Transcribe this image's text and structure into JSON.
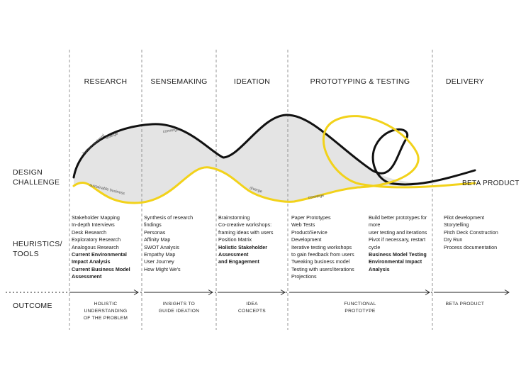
{
  "phases": [
    "RESEARCH",
    "SENSEMAKING",
    "IDEATION",
    "PROTOTYPING & TESTING",
    "DELIVERY"
  ],
  "row_labels": {
    "design_challenge": [
      "DESIGN",
      "CHALLENGE"
    ],
    "heuristics": [
      "HEURISTICS/",
      "TOOLS"
    ],
    "outcome": "OUTCOME"
  },
  "curve_labels": {
    "human_centered": "human-centered",
    "diverge_1": "diverge",
    "converge_1": "converge",
    "sustainable_business": "sustainable business",
    "diverge_2": "diverge",
    "converge_2": "converge"
  },
  "beta_product_label": "BETA PRODUCT",
  "tools": {
    "research": [
      {
        "text": "Stakeholder Mapping"
      },
      {
        "text": "In-depth Interviews"
      },
      {
        "text": "Desk Research"
      },
      {
        "text": "Exploratory Research"
      },
      {
        "text": "Analogous Research"
      },
      {
        "text": "Current Environmental",
        "bold": true
      },
      {
        "text": "Impact Analysis",
        "bold": true
      },
      {
        "text": "Current Business Model",
        "bold": true
      },
      {
        "text": "Assessment",
        "bold": true
      }
    ],
    "sensemaking": [
      {
        "text": "Synthesis of research"
      },
      {
        "text": "findings"
      },
      {
        "text": "Personas"
      },
      {
        "text": "Affinity Map"
      },
      {
        "text": "SWOT Analysis"
      },
      {
        "text": "Empathy Map"
      },
      {
        "text": "User Journey"
      },
      {
        "text": "How Might We's"
      }
    ],
    "ideation": [
      {
        "text": "Brainstorming"
      },
      {
        "text": "Co-creative workshops:"
      },
      {
        "text": "framing ideas with users"
      },
      {
        "text": "Position Matrix"
      },
      {
        "text": "Holistic Stakeholder",
        "bold": true
      },
      {
        "text": "Assessment",
        "bold": true
      },
      {
        "text": "and Engagement",
        "bold": true
      }
    ],
    "prototyping_1": [
      {
        "text": "Paper Prototypes"
      },
      {
        "text": "Web Tests"
      },
      {
        "text": "Product/Service"
      },
      {
        "text": "Development"
      },
      {
        "text": "Iterative testing workshops"
      },
      {
        "text": "to gain feedback from users"
      },
      {
        "text": "Tweaking business model"
      },
      {
        "text": "Testing with users/Iterations"
      },
      {
        "text": "Projections"
      }
    ],
    "prototyping_2": [
      {
        "text": "Build better prototypes for"
      },
      {
        "text": "more"
      },
      {
        "text": "user testing and iterations"
      },
      {
        "text": "Pivot if necessary, restart"
      },
      {
        "text": "cycle"
      },
      {
        "text": "Business Model Testing",
        "bold": true
      },
      {
        "text": "Environmental Impact",
        "bold": true
      },
      {
        "text": "Analysis",
        "bold": true
      }
    ],
    "delivery": [
      {
        "text": "Pilot development"
      },
      {
        "text": "Storytelling"
      },
      {
        "text": "Pitch Deck Construction"
      },
      {
        "text": "Dry Run"
      },
      {
        "text": "Process documentation"
      }
    ]
  },
  "outcomes": {
    "research": [
      "HOLISTIC",
      "UNDERSTANDING",
      "OF THE PROBLEM"
    ],
    "sensemaking": [
      "INSIGHTS TO",
      "GUIDE IDEATION"
    ],
    "ideation": [
      "IDEA",
      "CONCEPTS"
    ],
    "prototyping": [
      "FUNCTIONAL",
      "PROTOTYPE"
    ],
    "delivery": [
      "BETA PRODUCT"
    ]
  },
  "colors": {
    "black_line": "#111111",
    "yellow_line": "#f2d21a",
    "fill": "#e4e4e4",
    "dash": "#8a8a8a"
  }
}
